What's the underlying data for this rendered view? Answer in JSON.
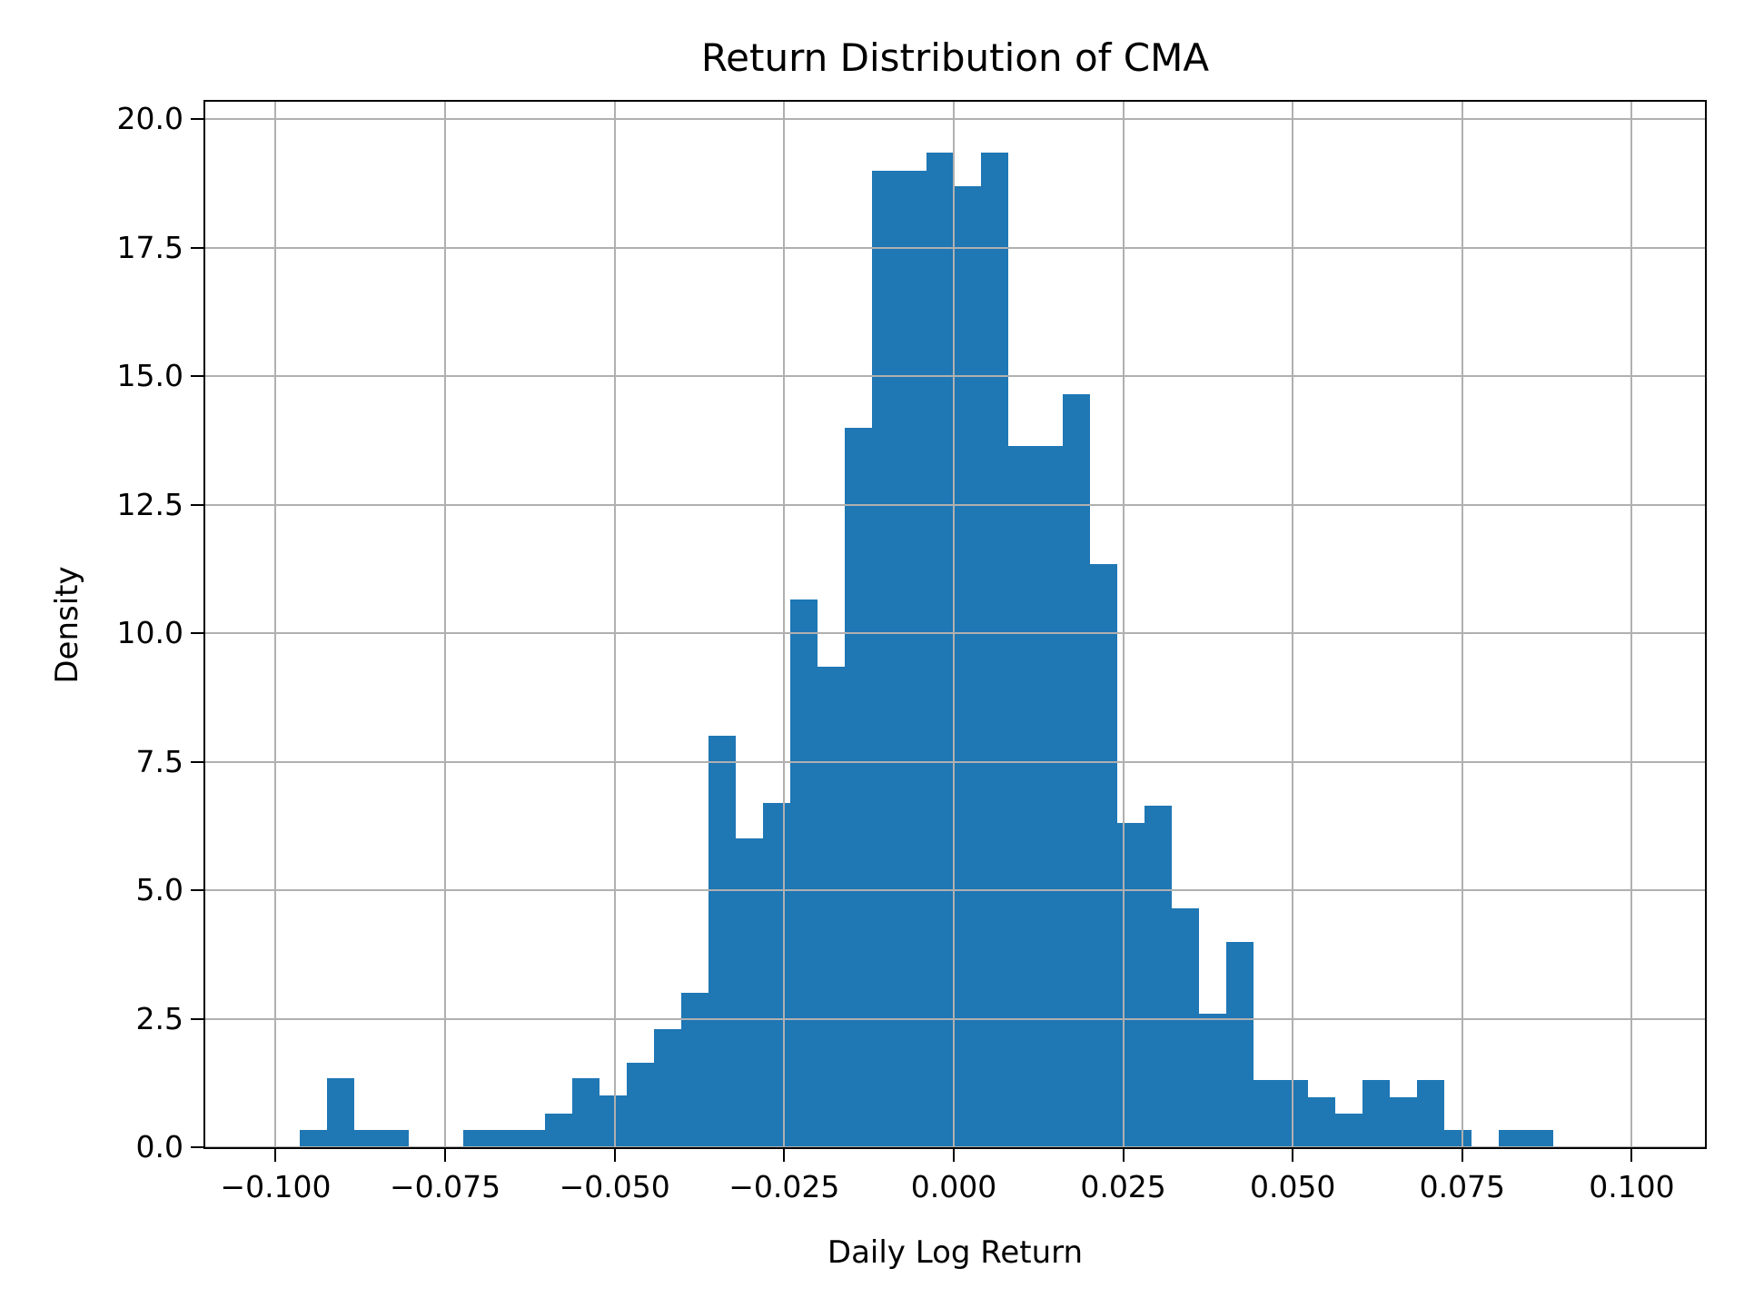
{
  "chart_data": {
    "type": "bar",
    "subtype": "histogram",
    "title": "Return Distribution of CMA",
    "xlabel": "Daily Log Return",
    "ylabel": "Density",
    "legend": null,
    "grid": true,
    "grid_on_top_of_bars": true,
    "colors": {
      "bar": "#1f77b4",
      "grid": "#b0b0b0",
      "spine": "#000000",
      "text": "#000000",
      "background": "#ffffff"
    },
    "xlim": [
      -0.11038,
      0.11079
    ],
    "ylim": [
      0,
      20.34
    ],
    "x_ticks": [
      {
        "value": -0.1,
        "label": "−0.100"
      },
      {
        "value": -0.075,
        "label": "−0.075"
      },
      {
        "value": -0.05,
        "label": "−0.050"
      },
      {
        "value": -0.025,
        "label": "−0.025"
      },
      {
        "value": 0.0,
        "label": "0.000"
      },
      {
        "value": 0.025,
        "label": "0.025"
      },
      {
        "value": 0.05,
        "label": "0.050"
      },
      {
        "value": 0.075,
        "label": "0.075"
      },
      {
        "value": 0.1,
        "label": "0.100"
      }
    ],
    "y_ticks": [
      {
        "value": 0.0,
        "label": "0.0"
      },
      {
        "value": 2.5,
        "label": "2.5"
      },
      {
        "value": 5.0,
        "label": "5.0"
      },
      {
        "value": 7.5,
        "label": "7.5"
      },
      {
        "value": 10.0,
        "label": "10.0"
      },
      {
        "value": 12.5,
        "label": "12.5"
      },
      {
        "value": 15.0,
        "label": "15.0"
      },
      {
        "value": 17.5,
        "label": "17.5"
      },
      {
        "value": 20.0,
        "label": "20.0"
      }
    ],
    "histogram": {
      "bin_start": -0.0965,
      "bin_width": 0.00402,
      "densities": [
        0.34,
        1.35,
        0.34,
        0.34,
        0,
        0,
        0.34,
        0.34,
        0.34,
        0.65,
        1.35,
        1.0,
        1.65,
        2.3,
        3.0,
        8.0,
        6.0,
        6.7,
        10.65,
        9.35,
        14.0,
        19.0,
        19.0,
        19.35,
        18.7,
        19.35,
        13.65,
        13.65,
        14.65,
        11.35,
        6.3,
        6.65,
        4.65,
        2.6,
        4.0,
        1.3,
        1.3,
        0.97,
        0.65,
        1.3,
        0.97,
        1.3,
        0.34,
        0,
        0.34,
        0.34
      ]
    }
  }
}
